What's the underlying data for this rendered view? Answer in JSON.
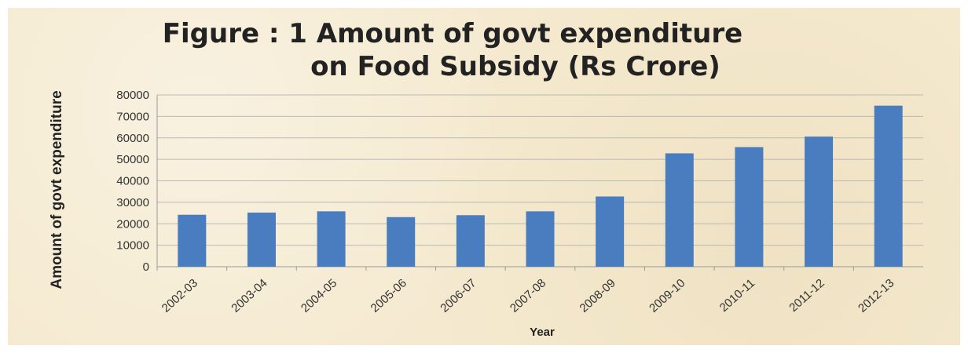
{
  "chart_data": {
    "type": "bar",
    "title_line1": "Figure : 1  Amount of govt expenditure",
    "title_line2": "on Food Subsidy (Rs Crore)",
    "xlabel": "Year",
    "ylabel": "Amount of govt expenditure",
    "ylim": [
      0,
      80000
    ],
    "yticks": [
      0,
      10000,
      20000,
      30000,
      40000,
      50000,
      60000,
      70000,
      80000
    ],
    "grid": true,
    "categories": [
      "2002-03",
      "2003-04",
      "2004-05",
      "2005-06",
      "2006-07",
      "2007-08",
      "2008-09",
      "2009-10",
      "2010-11",
      "2011-12",
      "2012-13"
    ],
    "values": [
      24200,
      25200,
      25800,
      23100,
      24000,
      25800,
      32700,
      52800,
      55700,
      60600,
      75000
    ],
    "bar_color": "#4a7cc0"
  }
}
